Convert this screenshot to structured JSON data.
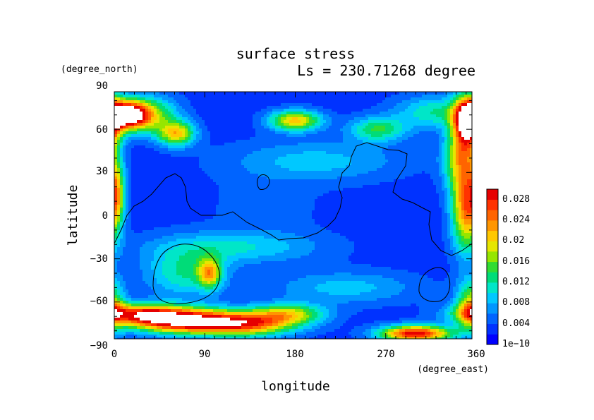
{
  "chart_data": {
    "type": "heatmap",
    "title": "surface stress",
    "subtitle": "Ls = 230.71268 degree",
    "xlabel": "longitude",
    "ylabel": "latitude",
    "x_units": "(degree_east)",
    "y_units": "(degree_north)",
    "xlim": [
      0,
      360
    ],
    "ylim": [
      -90,
      90
    ],
    "x_ticks": [
      "0",
      "90",
      "180",
      "270",
      "360"
    ],
    "y_ticks": [
      "90",
      "60",
      "30",
      "0",
      "−30",
      "−60",
      "−90"
    ],
    "colorbar": {
      "ticks": [
        "0.028",
        "0.024",
        "0.02",
        "0.016",
        "0.012",
        "0.008",
        "0.004",
        "1e−10"
      ],
      "min": 0,
      "max": 0.03,
      "colors": [
        "#0000ff",
        "#0032ff",
        "#0064ff",
        "#0096ff",
        "#00c8ff",
        "#00e6c8",
        "#00dc78",
        "#32dc32",
        "#96e600",
        "#e6e600",
        "#ffc800",
        "#ff9600",
        "#ff6400",
        "#ff3200",
        "#e60000"
      ]
    },
    "background_value": 0.003,
    "hotspots": [
      {
        "lon": 15,
        "lat": 70,
        "value": 0.034,
        "slon": 14,
        "slat": 7
      },
      {
        "lon": 40,
        "lat": 70,
        "value": 0.014,
        "slon": 18,
        "slat": 9
      },
      {
        "lon": 62,
        "lat": 57,
        "value": 0.02,
        "slon": 13,
        "slat": 6
      },
      {
        "lon": 180,
        "lat": 66,
        "value": 0.021,
        "slon": 18,
        "slat": 5
      },
      {
        "lon": 262,
        "lat": 60,
        "value": 0.014,
        "slon": 20,
        "slat": 6
      },
      {
        "lon": 320,
        "lat": 72,
        "value": 0.012,
        "slon": 28,
        "slat": 8
      },
      {
        "lon": 352,
        "lat": 66,
        "value": 0.034,
        "slon": 10,
        "slat": 12
      },
      {
        "lon": 345,
        "lat": 40,
        "value": 0.018,
        "slon": 12,
        "slat": 15
      },
      {
        "lon": 350,
        "lat": 5,
        "value": 0.024,
        "slon": 10,
        "slat": 20
      },
      {
        "lon": 2,
        "lat": 15,
        "value": 0.016,
        "slon": 6,
        "slat": 15
      },
      {
        "lon": 70,
        "lat": -40,
        "value": 0.012,
        "slon": 28,
        "slat": 12
      },
      {
        "lon": 95,
        "lat": -40,
        "value": 0.018,
        "slon": 8,
        "slat": 7
      },
      {
        "lon": 20,
        "lat": -68,
        "value": 0.022,
        "slon": 30,
        "slat": 5
      },
      {
        "lon": 65,
        "lat": -73,
        "value": 0.03,
        "slon": 35,
        "slat": 6
      },
      {
        "lon": 130,
        "lat": -75,
        "value": 0.026,
        "slon": 35,
        "slat": 6
      },
      {
        "lon": 175,
        "lat": -68,
        "value": 0.016,
        "slon": 25,
        "slat": 5
      },
      {
        "lon": 300,
        "lat": -82,
        "value": 0.03,
        "slon": 25,
        "slat": 4
      },
      {
        "lon": 355,
        "lat": -62,
        "value": 0.018,
        "slon": 10,
        "slat": 12
      },
      {
        "lon": 200,
        "lat": 38,
        "value": 0.009,
        "slon": 60,
        "slat": 10
      },
      {
        "lon": 120,
        "lat": -22,
        "value": 0.01,
        "slon": 60,
        "slat": 8
      },
      {
        "lon": 230,
        "lat": -50,
        "value": 0.009,
        "slon": 50,
        "slat": 8
      },
      {
        "lon": 150,
        "lat": 6,
        "value": 0.005,
        "slon": 40,
        "slat": 15
      }
    ]
  }
}
